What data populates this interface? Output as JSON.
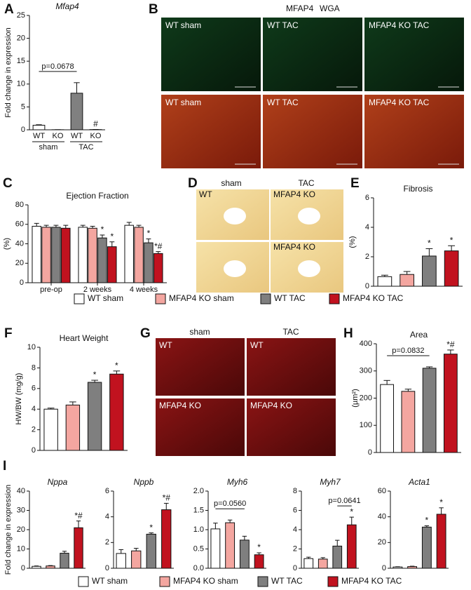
{
  "panel_letters": [
    "A",
    "B",
    "C",
    "D",
    "E",
    "F",
    "G",
    "H",
    "I"
  ],
  "chart_data": [
    {
      "type": "bar",
      "title": "Mfap4",
      "title_italic": true,
      "ylabel": "Fold change in expression",
      "categories": [
        "WT",
        "KO",
        "WT",
        "KO"
      ],
      "groups": [
        "sham",
        "TAC"
      ],
      "values": [
        1,
        0.02,
        8,
        0.05
      ],
      "errors": [
        0.1,
        0.01,
        2.3,
        0.02
      ],
      "colors": [
        "#ffffff",
        "#ffffff",
        "#808080",
        "#000000"
      ],
      "annotations": [
        null,
        null,
        null,
        "#"
      ],
      "brackets": [
        {
          "label": "p=0.0678",
          "from": 0,
          "to": 2
        }
      ],
      "ylim": [
        0,
        25
      ],
      "yticks": [
        0,
        5,
        10,
        15,
        20,
        25
      ]
    },
    {
      "type": "grouped_bar",
      "title": "Ejection Fraction",
      "ylabel": "(%)",
      "categories": [
        "pre-op",
        "2 weeks",
        "4 weeks"
      ],
      "series": [
        {
          "name": "WT sham",
          "color": "#ffffff",
          "values": [
            58,
            57,
            59
          ],
          "errors": [
            3,
            2,
            3
          ]
        },
        {
          "name": "MFAP4 KO sham",
          "color": "#f4a6a0",
          "values": [
            57,
            56,
            57
          ],
          "errors": [
            2,
            2,
            2
          ]
        },
        {
          "name": "WT TAC",
          "color": "#7f7f7f",
          "values": [
            57,
            46,
            41
          ],
          "errors": [
            2,
            3,
            4
          ],
          "annotations": [
            null,
            "*",
            "*"
          ]
        },
        {
          "name": "MFAP4 KO TAC",
          "color": "#c1121f",
          "values": [
            56,
            37,
            30
          ],
          "errors": [
            3,
            5,
            2
          ],
          "annotations": [
            null,
            "*",
            "*#"
          ]
        }
      ],
      "ylim": [
        0,
        80
      ],
      "yticks": [
        0,
        20,
        40,
        60,
        80
      ]
    },
    {
      "type": "bar",
      "title": "Fibrosis",
      "ylabel": "(%)",
      "values": [
        0.65,
        0.8,
        2.05,
        2.4
      ],
      "errors": [
        0.1,
        0.2,
        0.5,
        0.35
      ],
      "colors": [
        "#ffffff",
        "#f4a6a0",
        "#7f7f7f",
        "#c1121f"
      ],
      "annotations": [
        null,
        null,
        "*",
        "*"
      ],
      "ylim": [
        0,
        6
      ],
      "yticks": [
        0,
        2,
        4,
        6
      ]
    },
    {
      "type": "bar",
      "title": "Heart Weight",
      "ylabel": "HW/BW (mg/g)",
      "values": [
        4.0,
        4.4,
        6.6,
        7.4
      ],
      "errors": [
        0.1,
        0.3,
        0.2,
        0.3
      ],
      "colors": [
        "#ffffff",
        "#f4a6a0",
        "#7f7f7f",
        "#c1121f"
      ],
      "annotations": [
        null,
        null,
        "*",
        "*"
      ],
      "ylim": [
        0,
        10
      ],
      "yticks": [
        0,
        2,
        4,
        6,
        8,
        10
      ]
    },
    {
      "type": "bar",
      "title": "Area",
      "ylabel": "(µm²)",
      "values": [
        250,
        225,
        310,
        362
      ],
      "errors": [
        15,
        8,
        5,
        15
      ],
      "colors": [
        "#ffffff",
        "#f4a6a0",
        "#7f7f7f",
        "#c1121f"
      ],
      "annotations": [
        null,
        null,
        null,
        "*#"
      ],
      "brackets": [
        {
          "label": "p=0.0832",
          "from": 0,
          "to": 2
        }
      ],
      "ylim": [
        0,
        400
      ],
      "yticks": [
        0,
        100,
        200,
        300,
        400
      ]
    },
    {
      "type": "bar",
      "title": "Nppa",
      "title_italic": true,
      "ylabel": "Fold change in expression",
      "values": [
        1,
        1.2,
        7.8,
        21
      ],
      "errors": [
        0.2,
        0.2,
        1,
        3.5
      ],
      "colors": [
        "#ffffff",
        "#f4a6a0",
        "#7f7f7f",
        "#c1121f"
      ],
      "annotations": [
        null,
        null,
        null,
        "*#"
      ],
      "ylim": [
        0,
        40
      ],
      "yticks": [
        0,
        10,
        20,
        30,
        40
      ]
    },
    {
      "type": "bar",
      "title": "Nppb",
      "title_italic": true,
      "values": [
        1.15,
        1.35,
        2.65,
        4.55
      ],
      "errors": [
        0.3,
        0.2,
        0.1,
        0.5
      ],
      "colors": [
        "#ffffff",
        "#f4a6a0",
        "#7f7f7f",
        "#c1121f"
      ],
      "annotations": [
        null,
        null,
        "*",
        "*#"
      ],
      "ylim": [
        0,
        6
      ],
      "yticks": [
        0,
        2,
        4,
        6
      ]
    },
    {
      "type": "bar",
      "title": "Myh6",
      "title_italic": true,
      "values": [
        1.02,
        1.18,
        0.73,
        0.35
      ],
      "errors": [
        0.15,
        0.07,
        0.1,
        0.05
      ],
      "colors": [
        "#ffffff",
        "#f4a6a0",
        "#7f7f7f",
        "#c1121f"
      ],
      "annotations": [
        null,
        null,
        null,
        "*"
      ],
      "brackets": [
        {
          "label": "p=0.0560",
          "from": 0,
          "to": 2
        }
      ],
      "ylim": [
        0,
        2
      ],
      "yticks": [
        {
          "value": 0,
          "label": "0.0"
        },
        0.5,
        {
          "value": 1,
          "label": "1.0"
        },
        1.5,
        {
          "value": 2,
          "label": "2.0"
        }
      ]
    },
    {
      "type": "bar",
      "title": "Myh7",
      "title_italic": true,
      "values": [
        1.0,
        0.95,
        2.3,
        4.5
      ],
      "errors": [
        0.15,
        0.15,
        0.6,
        0.8
      ],
      "colors": [
        "#ffffff",
        "#f4a6a0",
        "#7f7f7f",
        "#c1121f"
      ],
      "annotations": [
        null,
        null,
        null,
        "*"
      ],
      "brackets": [
        {
          "label": "p=0.0641",
          "from": 2,
          "to": 3
        }
      ],
      "ylim": [
        0,
        8
      ],
      "yticks": [
        0,
        2,
        4,
        6,
        8
      ]
    },
    {
      "type": "bar",
      "title": "Acta1",
      "title_italic": true,
      "values": [
        1,
        1.3,
        32,
        42
      ],
      "errors": [
        0.2,
        0.3,
        1,
        5
      ],
      "colors": [
        "#ffffff",
        "#f4a6a0",
        "#7f7f7f",
        "#c1121f"
      ],
      "annotations": [
        null,
        null,
        "*",
        "*"
      ],
      "ylim": [
        0,
        60
      ],
      "yticks": [
        0,
        20,
        40,
        60
      ]
    }
  ],
  "images": {
    "B": {
      "legend": [
        "MFAP4",
        "WGA"
      ],
      "tiles": [
        "WT sham",
        "WT TAC",
        "MFAP4 KO TAC",
        "WT sham",
        "WT TAC",
        "MFAP4 KO TAC"
      ]
    },
    "D": {
      "columns": [
        "sham",
        "TAC"
      ],
      "tiles": [
        "WT",
        "MFAP4 KO",
        null,
        "MFAP4 KO"
      ]
    },
    "G": {
      "columns": [
        "sham",
        "TAC"
      ],
      "tiles": [
        "WT",
        "WT",
        "MFAP4 KO",
        "MFAP4 KO"
      ]
    }
  }
}
